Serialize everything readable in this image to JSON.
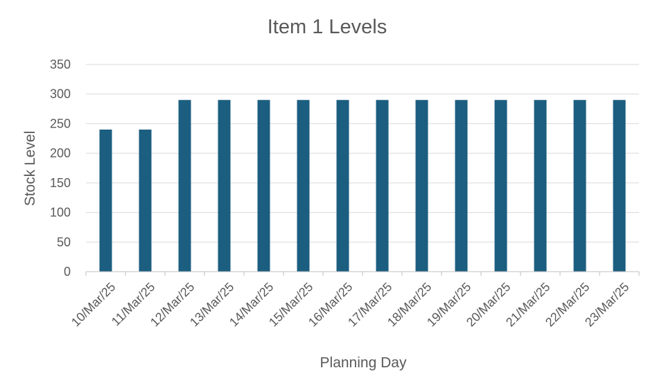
{
  "chart_data": {
    "type": "bar",
    "title": "Item 1 Levels",
    "xlabel": "Planning Day",
    "ylabel": "Stock Level",
    "categories": [
      "10/Mar/25",
      "11/Mar/25",
      "12/Mar/25",
      "13/Mar/25",
      "14/Mar/25",
      "15/Mar/25",
      "16/Mar/25",
      "17/Mar/25",
      "18/Mar/25",
      "19/Mar/25",
      "20/Mar/25",
      "21/Mar/25",
      "22/Mar/25",
      "23/Mar/25"
    ],
    "values": [
      240,
      240,
      290,
      290,
      290,
      290,
      290,
      290,
      290,
      290,
      290,
      290,
      290,
      290
    ],
    "ylim": [
      0,
      350
    ],
    "yticks": [
      0,
      50,
      100,
      150,
      200,
      250,
      300,
      350
    ],
    "grid": true,
    "legend": "none",
    "colors": {
      "bar": "#1b5e80"
    }
  }
}
